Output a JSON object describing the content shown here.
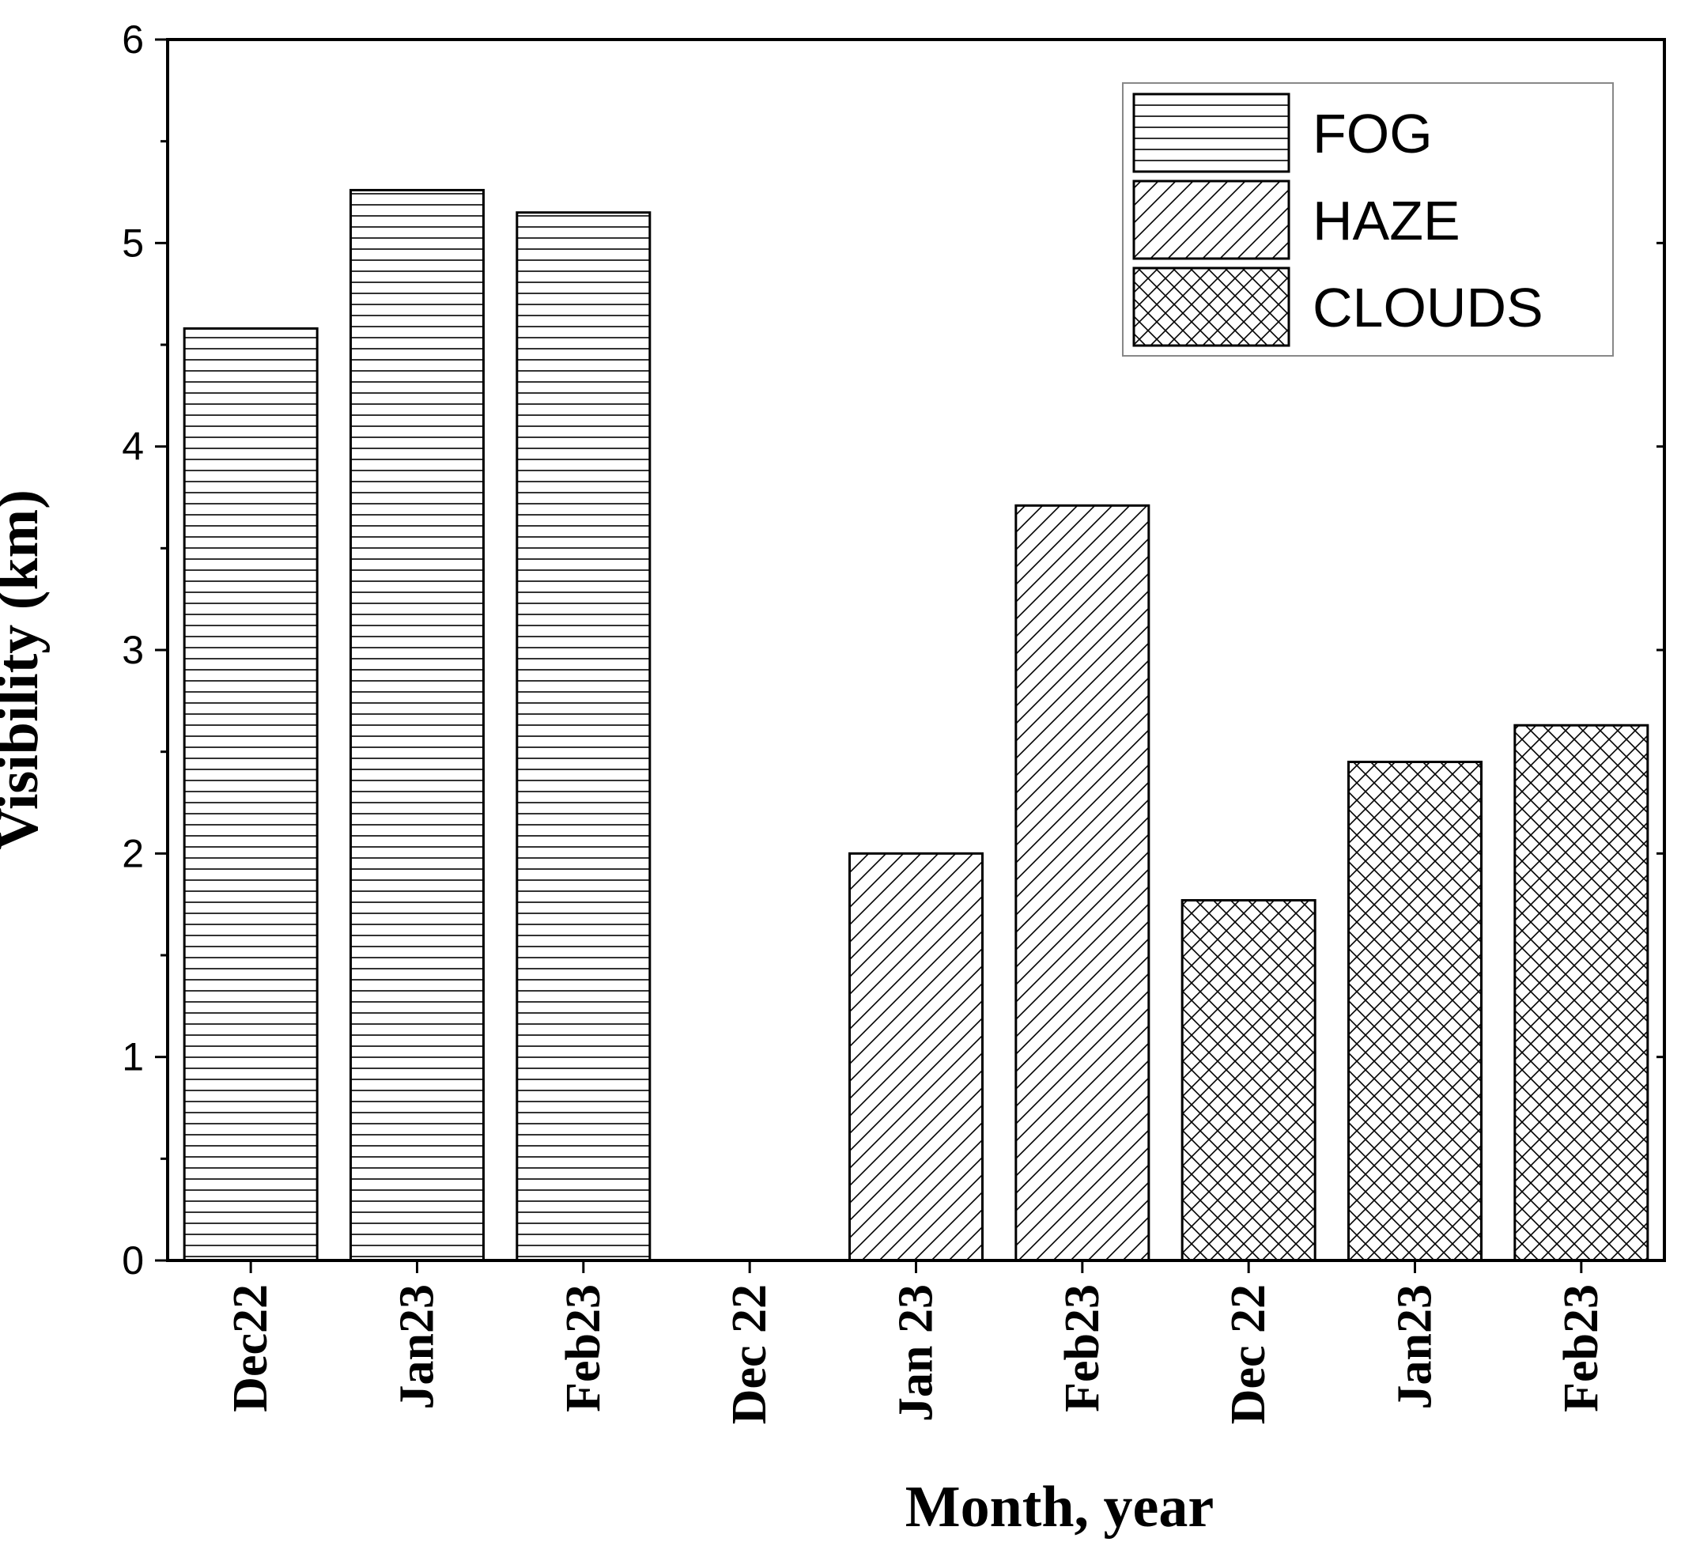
{
  "chart_data": {
    "type": "bar",
    "xlabel": "Month, year",
    "ylabel": "Visibility (km)",
    "ylim": [
      0,
      6
    ],
    "yticks": [
      0,
      1,
      2,
      3,
      4,
      5,
      6
    ],
    "grid": false,
    "legend_position": "top-right",
    "categories": [
      "Dec22",
      "Jan23",
      "Feb23",
      "Dec 22",
      "Jan 23",
      "Feb23",
      "Dec 22",
      "Jan23",
      "Feb23"
    ],
    "series": [
      {
        "name": "FOG",
        "pattern": "horizontal-lines",
        "values": [
          4.58,
          5.26,
          5.15,
          null,
          null,
          null,
          null,
          null,
          null
        ]
      },
      {
        "name": "HAZE",
        "pattern": "diagonal-lines",
        "values": [
          null,
          null,
          null,
          0,
          2.0,
          3.71,
          null,
          null,
          null
        ]
      },
      {
        "name": "CLOUDS",
        "pattern": "crosshatch",
        "values": [
          null,
          null,
          null,
          null,
          null,
          null,
          1.77,
          2.45,
          2.63
        ]
      }
    ],
    "colors": {
      "bar_fill": "#ffffff",
      "bar_stroke": "#000000",
      "hatch": "#000000"
    }
  }
}
